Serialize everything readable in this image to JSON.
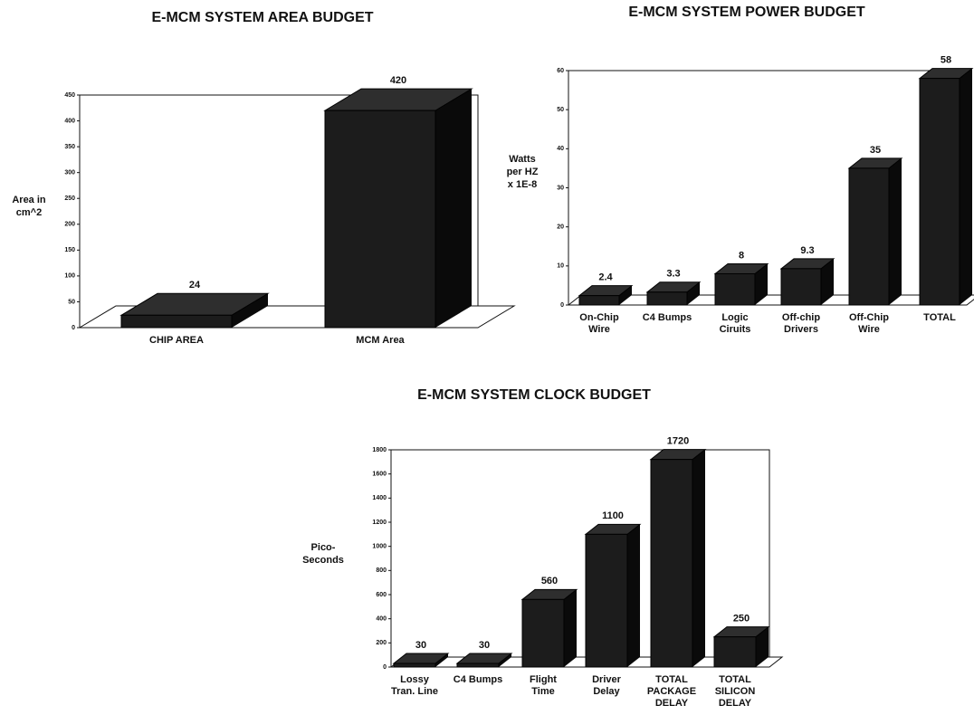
{
  "chart_data": [
    {
      "type": "bar3d",
      "title": "E-MCM SYSTEM AREA BUDGET",
      "y_label": [
        "Area in",
        "cm^2"
      ],
      "categories": [
        [
          "CHIP AREA"
        ],
        [
          "MCM Area"
        ]
      ],
      "values": [
        24,
        420
      ],
      "color": "#1c1c1c",
      "ylim": [
        0,
        450
      ],
      "yticks": [
        0,
        50,
        100,
        150,
        200,
        250,
        300,
        350,
        400,
        450
      ]
    },
    {
      "type": "bar3d",
      "title": "E-MCM SYSTEM POWER BUDGET",
      "y_label": [
        "Watts",
        "per HZ",
        "x 1E-8"
      ],
      "categories": [
        [
          "On-Chip",
          "Wire"
        ],
        [
          "C4 Bumps"
        ],
        [
          "Logic",
          "Ciruits"
        ],
        [
          "Off-chip",
          "Drivers"
        ],
        [
          "Off-Chip",
          "Wire"
        ],
        [
          "TOTAL"
        ]
      ],
      "values": [
        2.4,
        3.3,
        8,
        9.3,
        35,
        58
      ],
      "color": "#1c1c1c",
      "ylim": [
        0,
        60
      ],
      "yticks": [
        0,
        10,
        20,
        30,
        40,
        50,
        60
      ]
    },
    {
      "type": "bar3d",
      "title": "E-MCM SYSTEM CLOCK BUDGET",
      "y_label": [
        "Pico-",
        "Seconds"
      ],
      "categories": [
        [
          "Lossy",
          "Tran. Line"
        ],
        [
          "C4 Bumps"
        ],
        [
          "Flight",
          "Time"
        ],
        [
          "Driver",
          "Delay"
        ],
        [
          "TOTAL",
          "PACKAGE",
          "DELAY"
        ],
        [
          "TOTAL",
          "SILICON",
          "DELAY"
        ]
      ],
      "values": [
        30,
        30,
        560,
        1100,
        1720,
        250
      ],
      "color": "#1c1c1c",
      "ylim": [
        0,
        1800
      ],
      "yticks": [
        0,
        200,
        400,
        600,
        800,
        1000,
        1200,
        1400,
        1600,
        1800
      ]
    }
  ]
}
